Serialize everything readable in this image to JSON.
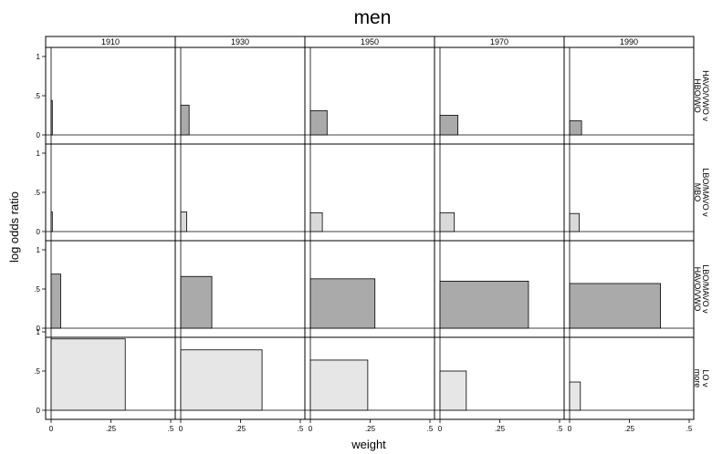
{
  "chart_data": {
    "type": "bar",
    "title": "men",
    "xlabel": "weight",
    "ylabel": "log odds ratio",
    "columns": [
      "1910",
      "1930",
      "1950",
      "1970",
      "1990"
    ],
    "rows": [
      {
        "label_lines": [
          "HAVO/VWO v",
          "HBO/WO"
        ],
        "fill": "#aaaaaa"
      },
      {
        "label_lines": [
          "LBO/MAVO v",
          "MBO"
        ],
        "fill": "#d9d9d9"
      },
      {
        "label_lines": [
          "LBO/MAVO v",
          "HAVO/VWO"
        ],
        "fill": "#aaaaaa"
      },
      {
        "label_lines": [
          "LO v",
          "more"
        ],
        "fill": "#e6e6e6"
      }
    ],
    "xlim": [
      0,
      0.5
    ],
    "ylim": [
      0,
      1
    ],
    "x_ticks": [
      "0",
      ".25",
      ".5"
    ],
    "x_tick_values": [
      0,
      0.25,
      0.5
    ],
    "y_ticks": [
      "0",
      ".5",
      "1"
    ],
    "y_tick_values": [
      0,
      0.5,
      1
    ],
    "grid": false,
    "bars": [
      [
        {
          "weight": 0.005,
          "value": 0.44
        },
        {
          "weight": 0.035,
          "value": 0.38
        },
        {
          "weight": 0.07,
          "value": 0.31
        },
        {
          "weight": 0.075,
          "value": 0.25
        },
        {
          "weight": 0.05,
          "value": 0.18
        }
      ],
      [
        {
          "weight": 0.005,
          "value": 0.25
        },
        {
          "weight": 0.025,
          "value": 0.25
        },
        {
          "weight": 0.05,
          "value": 0.24
        },
        {
          "weight": 0.06,
          "value": 0.24
        },
        {
          "weight": 0.04,
          "value": 0.23
        }
      ],
      [
        {
          "weight": 0.04,
          "value": 0.69
        },
        {
          "weight": 0.13,
          "value": 0.66
        },
        {
          "weight": 0.27,
          "value": 0.63
        },
        {
          "weight": 0.37,
          "value": 0.6
        },
        {
          "weight": 0.38,
          "value": 0.57
        }
      ],
      [
        {
          "weight": 0.31,
          "value": 0.91
        },
        {
          "weight": 0.34,
          "value": 0.77
        },
        {
          "weight": 0.24,
          "value": 0.64
        },
        {
          "weight": 0.11,
          "value": 0.5
        },
        {
          "weight": 0.045,
          "value": 0.36
        }
      ]
    ]
  }
}
